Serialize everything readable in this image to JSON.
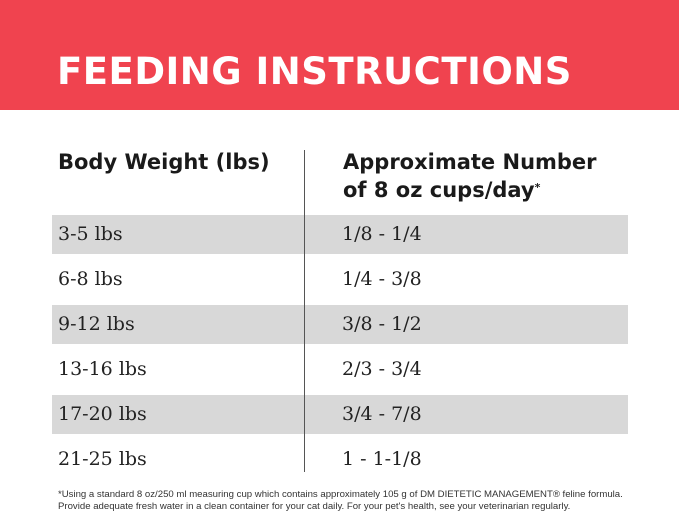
{
  "header": {
    "title": "FEEDING INSTRUCTIONS"
  },
  "table": {
    "columns": [
      "Body Weight (lbs)",
      {
        "line1": "Approximate Number",
        "line2": "of 8 oz cups/day",
        "mark": "*"
      }
    ],
    "rows": [
      [
        "3-5 lbs",
        "1/8 - 1/4"
      ],
      [
        "6-8 lbs",
        "1/4 - 3/8"
      ],
      [
        "9-12 lbs",
        "3/8 - 1/2"
      ],
      [
        "13-16 lbs",
        "2/3 - 3/4"
      ],
      [
        "17-20 lbs",
        "3/4 - 7/8"
      ],
      [
        "21-25 lbs",
        "1 - 1-1/8"
      ]
    ]
  },
  "footnote": "*Using a standard 8 oz/250 ml measuring cup which contains approximately 105 g of DM DIETETIC MANAGEMENT® feline formula. Provide adequate fresh water in a clean container for your cat daily. For your pet's health, see your veterinarian regularly."
}
